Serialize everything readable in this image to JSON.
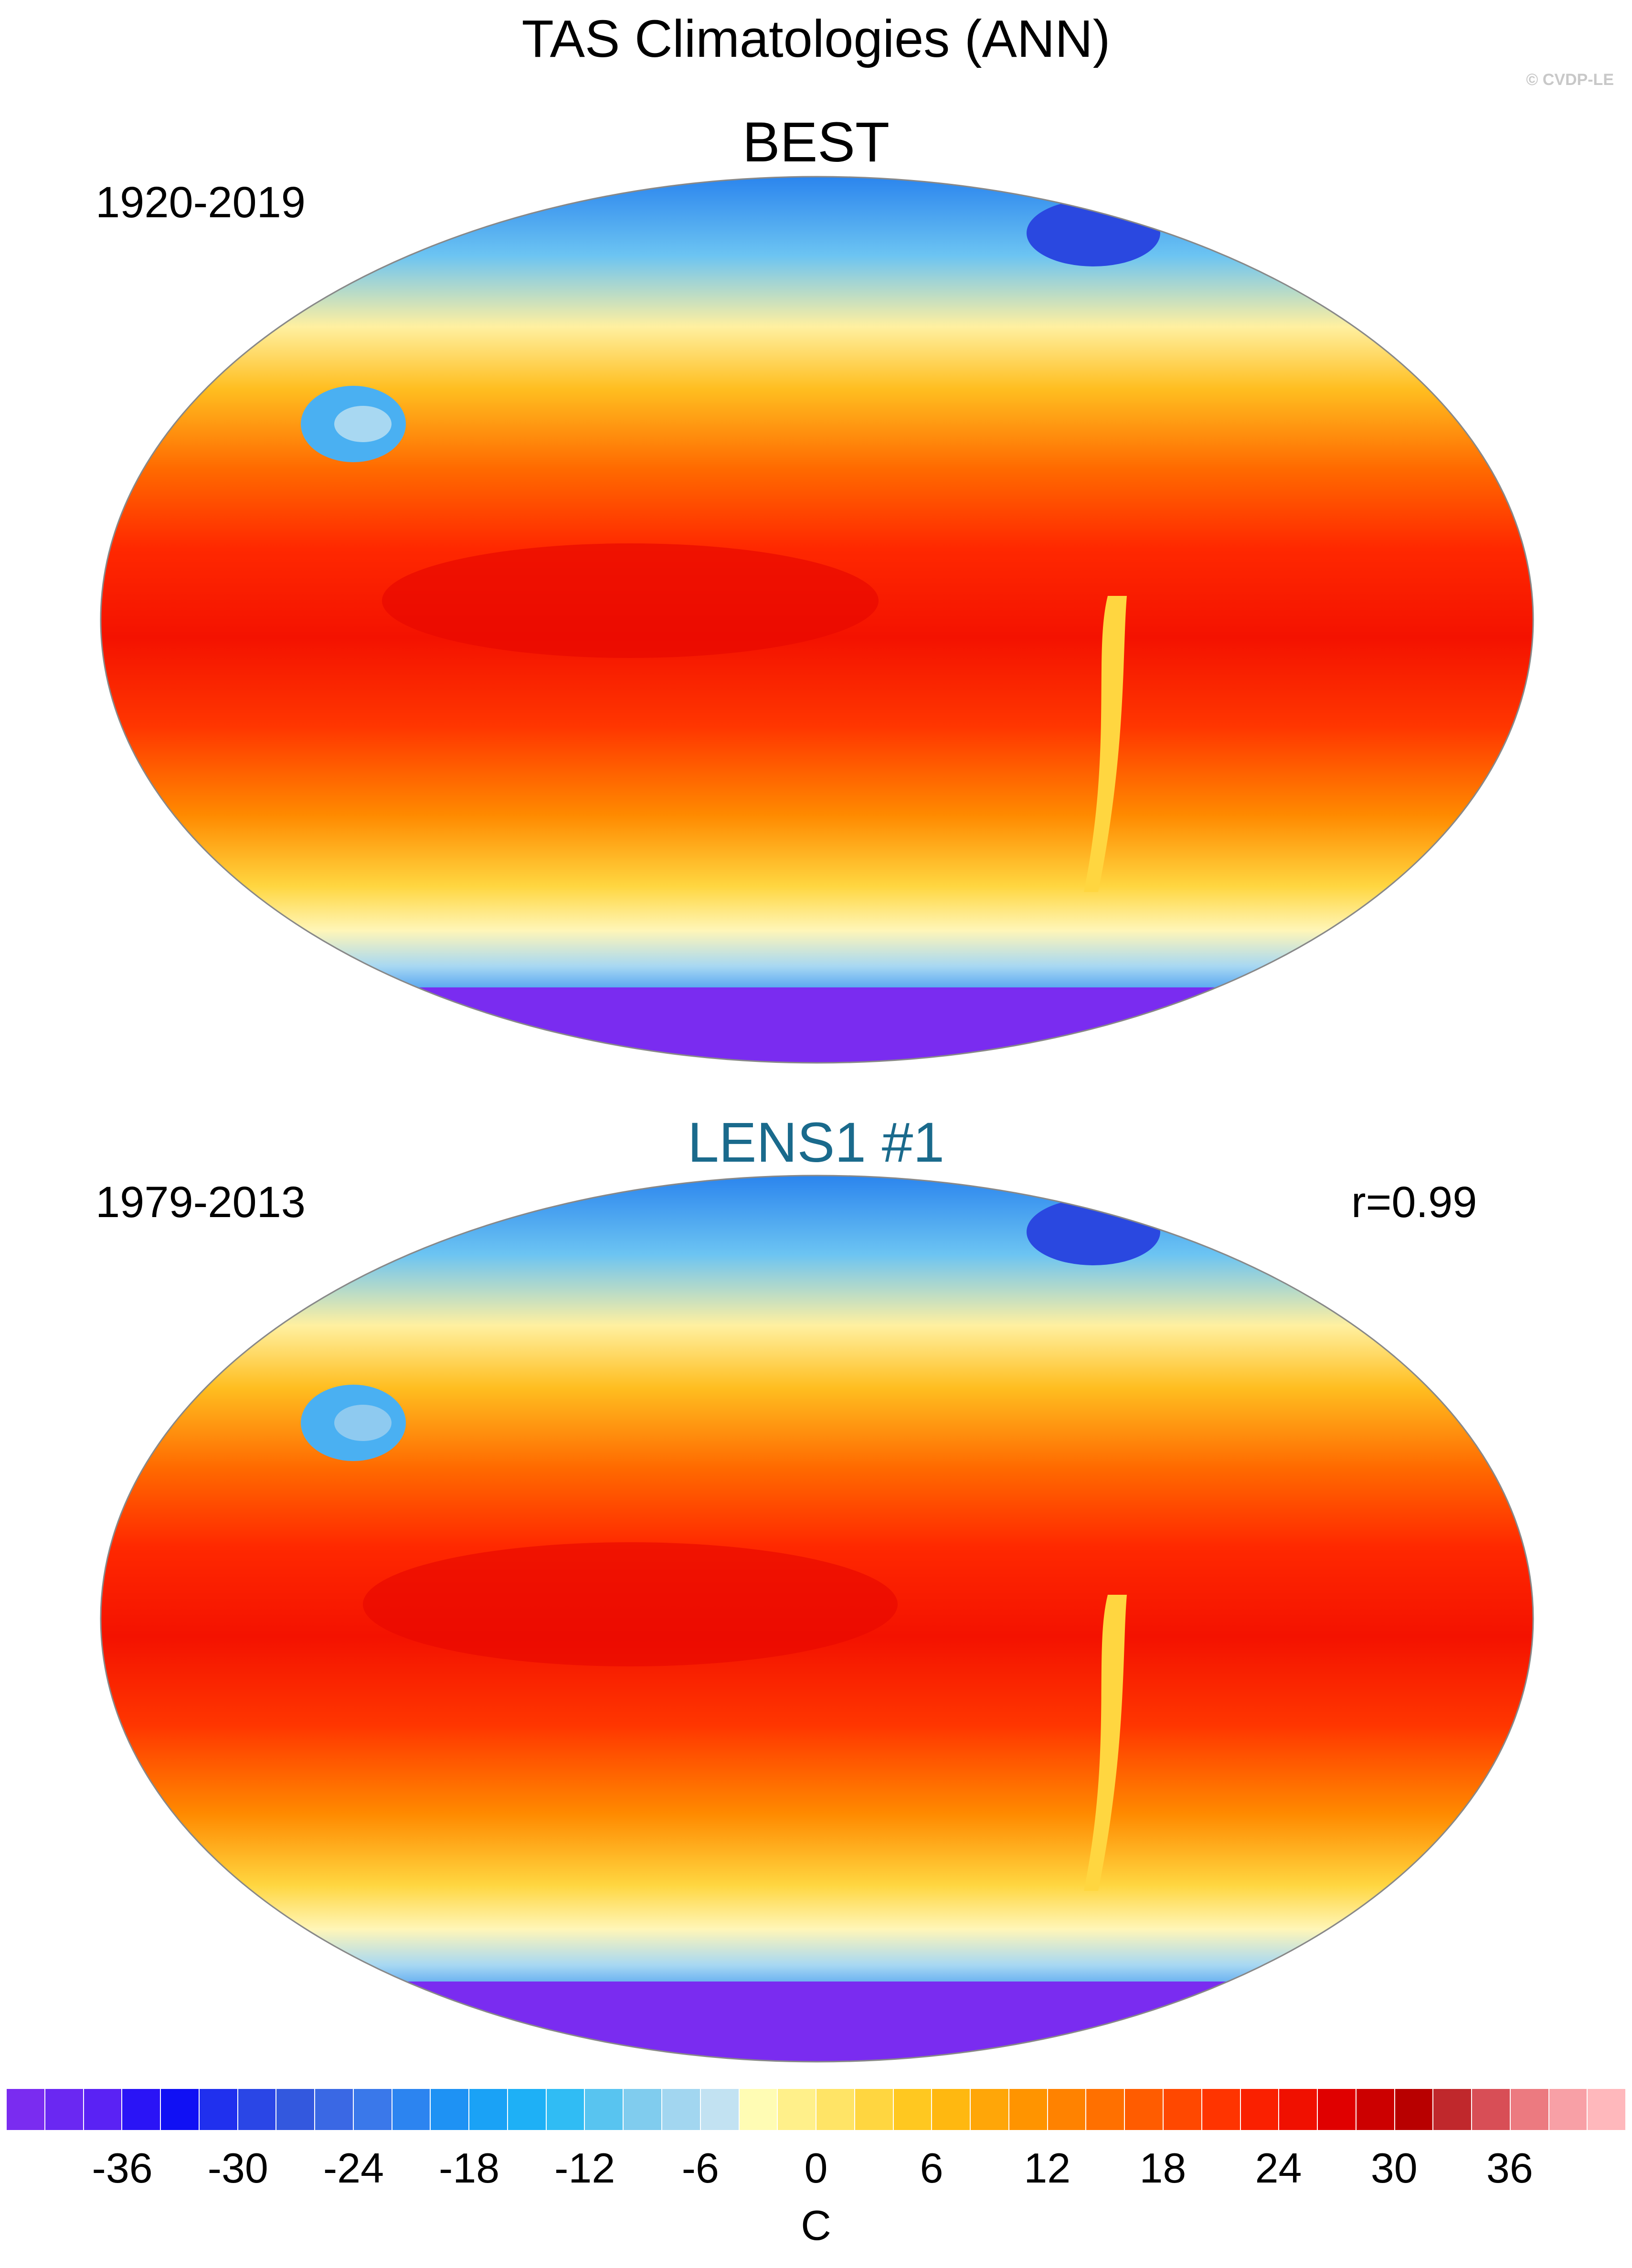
{
  "title": "TAS Climatologies (ANN)",
  "copyright": "© CVDP-LE",
  "panels": [
    {
      "name": "BEST",
      "period": "1920-2019",
      "stat": "",
      "name_color": "#000000"
    },
    {
      "name": "LENS1 #1",
      "period": "1979-2013",
      "stat": "r=0.99",
      "name_color": "#1a6a8c"
    }
  ],
  "colorbar": {
    "unit": "C",
    "tick_labels": [
      "-36",
      "-30",
      "-24",
      "-18",
      "-12",
      "-6",
      "0",
      "6",
      "12",
      "18",
      "24",
      "30",
      "36"
    ],
    "tick_values": [
      -36,
      -30,
      -24,
      -18,
      -12,
      -6,
      0,
      6,
      12,
      18,
      24,
      30,
      36
    ],
    "bins": 42,
    "colors": [
      "#7a2cf0",
      "#6a28f2",
      "#5a22f4",
      "#2a14f6",
      "#1010f4",
      "#2030ee",
      "#2a46e6",
      "#3358de",
      "#3a68e4",
      "#3a78ea",
      "#2c84f0",
      "#1e92f4",
      "#1aa2f6",
      "#1eb0f6",
      "#30bcf4",
      "#58c4f0",
      "#80ccee",
      "#a2d6f0",
      "#c2e2f2",
      "#fffcb4",
      "#fff08a",
      "#ffe466",
      "#ffd640",
      "#ffc820",
      "#ffb810",
      "#ffa608",
      "#ff9400",
      "#ff8200",
      "#ff7000",
      "#ff5c00",
      "#ff4800",
      "#ff3400",
      "#fa2000",
      "#f01000",
      "#e00000",
      "#cc0000",
      "#b80000",
      "#c0282c",
      "#d84e56",
      "#ec7a80",
      "#f8a0a6",
      "#ffb8bc"
    ]
  }
}
